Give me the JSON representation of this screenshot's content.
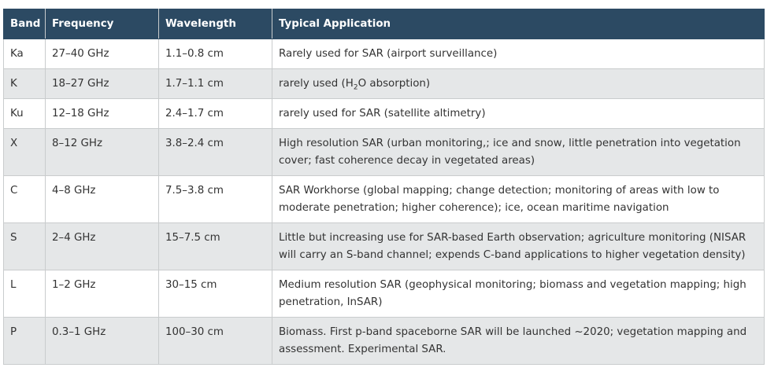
{
  "table": {
    "headers": [
      "Band",
      "Frequency",
      "Wavelength",
      "Typical Application"
    ],
    "rows": [
      {
        "band": "Ka",
        "frequency": "27–40 GHz",
        "wavelength": "1.1–0.8 cm",
        "application": "Rarely used for SAR (airport surveillance)"
      },
      {
        "band": "K",
        "frequency": "18–27 GHz",
        "wavelength": "1.7–1.1 cm",
        "application_pre": "rarely used (H",
        "application_sub": "2",
        "application_post": "O absorption)"
      },
      {
        "band": "Ku",
        "frequency": "12–18 GHz",
        "wavelength": "2.4–1.7 cm",
        "application": "rarely used for SAR (satellite altimetry)"
      },
      {
        "band": "X",
        "frequency": "8–12 GHz",
        "wavelength": "3.8–2.4 cm",
        "application": "High resolution SAR (urban monitoring,; ice and snow, little penetration into vegetation cover; fast coherence decay in vegetated areas)"
      },
      {
        "band": "C",
        "frequency": "4–8 GHz",
        "wavelength": "7.5–3.8 cm",
        "application": "SAR Workhorse (global mapping; change detection; monitoring of areas with low to moderate penetration; higher coherence); ice, ocean maritime navigation"
      },
      {
        "band": "S",
        "frequency": "2–4 GHz",
        "wavelength": "15–7.5 cm",
        "application": "Little but increasing use for SAR-based Earth observation; agriculture monitoring (NISAR will carry an S-band channel; expends C-band applications to higher vegetation density)"
      },
      {
        "band": "L",
        "frequency": "1–2 GHz",
        "wavelength": "30–15 cm",
        "application": "Medium resolution SAR (geophysical monitoring; biomass and vegetation mapping; high penetration, InSAR)"
      },
      {
        "band": "P",
        "frequency": "0.3–1 GHz",
        "wavelength": "100–30 cm",
        "application": "Biomass. First p-band spaceborne SAR will be launched ~2020; vegetation mapping and assessment. Experimental SAR."
      }
    ]
  }
}
